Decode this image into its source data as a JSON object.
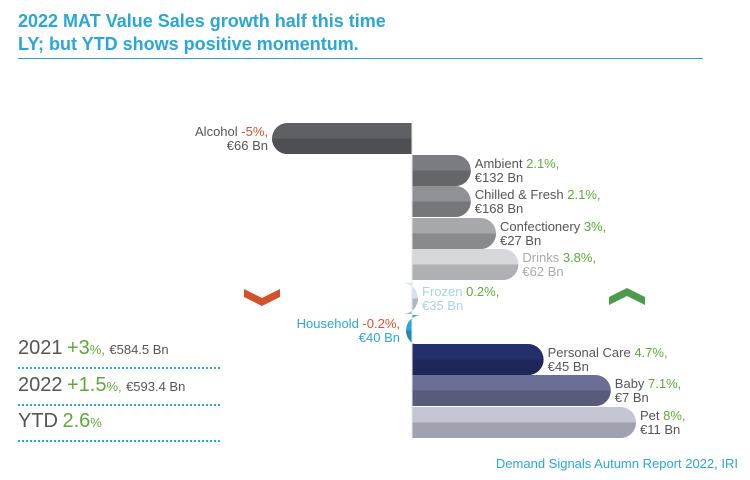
{
  "title": {
    "line1": "2022 MAT Value Sales growth half this time",
    "line2": "LY; but YTD shows positive momentum."
  },
  "colors": {
    "title": "#2aa7d6",
    "positive": "#5cab3a",
    "negative": "#d4512b",
    "text": "#555555"
  },
  "chart_data": {
    "type": "bar",
    "orientation": "horizontal-diverging",
    "title": "2022 MAT Value Sales growth half this time LY; but YTD shows positive momentum.",
    "unit": "% value sales growth",
    "categories": [
      "Alcohol",
      "Ambient",
      "Chilled & Fresh",
      "Confectionery",
      "Drinks",
      "Frozen",
      "Household",
      "Personal Care",
      "Baby",
      "Pet"
    ],
    "series": [
      {
        "name": "MAT value growth",
        "values": [
          -5,
          2.1,
          2.1,
          3,
          3.8,
          0.2,
          -0.2,
          4.7,
          7.1,
          8
        ],
        "growth_labels": [
          "-5%,",
          "2.1%,",
          "2.1%,",
          "3%,",
          "3.8%,",
          "0.2%,",
          "-0.2%,",
          "4.7%,",
          "7.1%,",
          "8%,"
        ],
        "value_labels": [
          "€66 Bn",
          "€132 Bn",
          "€168 Bn",
          "€27 Bn",
          "€62 Bn",
          "€35 Bn",
          "€40 Bn",
          "€45 Bn",
          "€7 Bn",
          "€11 Bn"
        ],
        "colors": [
          "#5f6065",
          "#7b7c81",
          "#909196",
          "#a7a8ac",
          "#d6d7da",
          "#cfe3ef",
          "#2aa7d6",
          "#252f6b",
          "#6b6f96",
          "#c4c6d6"
        ]
      }
    ],
    "legend_markers": [
      {
        "name": "down-chevron",
        "color": "#d4512b"
      },
      {
        "name": "up-chevron",
        "color": "#4d9a4d"
      }
    ]
  },
  "summary": [
    {
      "year": "2021",
      "growth": "+3",
      "pct": "%,",
      "value": "€584.5 Bn"
    },
    {
      "year": "2022",
      "growth": "+1.5",
      "pct": "%,",
      "value": "€593.4 Bn"
    },
    {
      "year": "YTD",
      "growth": "2.6",
      "pct": "%",
      "value": ""
    }
  ],
  "source": "Demand Signals Autumn Report 2022, IRI"
}
